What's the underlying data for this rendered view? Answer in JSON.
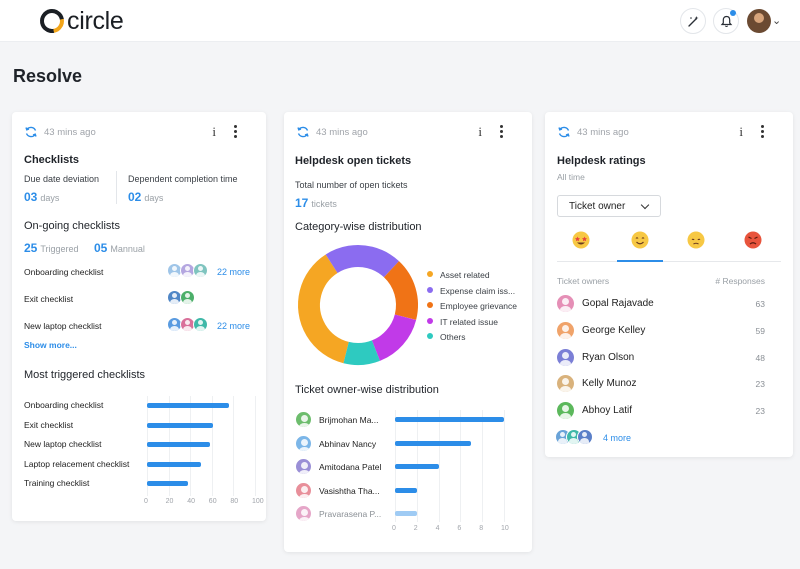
{
  "app": {
    "logo_text": "circle"
  },
  "page": {
    "title": "Resolve"
  },
  "colors": {
    "accent": "#2c8de8",
    "brand_ring": "#f2a51a"
  },
  "icons": {
    "magic": "magic-wand-icon",
    "bell": "bell-icon",
    "refresh": "refresh-icon",
    "info": "info-icon",
    "more": "kebab-menu-icon"
  },
  "checklists_card": {
    "updated": "43 mins ago",
    "info_label": "i",
    "title": "Checklists",
    "due_label": "Due date deviation",
    "due_value": "03",
    "due_unit": "days",
    "dep_label": "Dependent completion time",
    "dep_value": "02",
    "dep_unit": "days",
    "ongoing_title": "On-going checklists",
    "triggered_value": "25",
    "triggered_label": "Triggered",
    "manual_value": "05",
    "manual_label": "Mannual",
    "rows": [
      {
        "label": "Onboarding checklist",
        "more": "22 more"
      },
      {
        "label": "Exit checklist",
        "more": ""
      },
      {
        "label": "New laptop checklist",
        "more": "22 more"
      }
    ],
    "show_more": "Show more...",
    "most_title": "Most triggered checklists"
  },
  "tickets_card": {
    "updated": "43 mins ago",
    "info_label": "i",
    "title": "Helpdesk open tickets",
    "total_label": "Total number of open tickets",
    "total_value": "17",
    "total_unit": "tickets",
    "category_title": "Category-wise distribution",
    "owner_title": "Ticket owner-wise distribution"
  },
  "ratings_card": {
    "updated": "43 mins ago",
    "info_label": "i",
    "title": "Helpdesk ratings",
    "subtitle": "All time",
    "dropdown_value": "Ticket owner",
    "emojis": [
      "star-struck-emoji-icon",
      "smile-emoji-icon",
      "pensive-emoji-icon",
      "angry-emoji-icon"
    ],
    "col_owner": "Ticket owners",
    "col_responses": "# Responses",
    "owners": [
      {
        "name": "Gopal Rajavade",
        "responses": "63",
        "color": "#e58fb6"
      },
      {
        "name": "George Kelley",
        "responses": "59",
        "color": "#f0a36a"
      },
      {
        "name": "Ryan Olson",
        "responses": "48",
        "color": "#7b7fd6"
      },
      {
        "name": "Kelly Munoz",
        "responses": "23",
        "color": "#d9b27c"
      },
      {
        "name": "Abhoy Latif",
        "responses": "23",
        "color": "#5cb85c"
      }
    ],
    "more": "4 more"
  },
  "chart_data": [
    {
      "type": "bar",
      "orientation": "horizontal",
      "title": "Most triggered checklists",
      "categories": [
        "Onboarding checklist",
        "Exit checklist",
        "New laptop checklist",
        "Laptop relacement checklist",
        "Training checklist"
      ],
      "values": [
        76,
        61,
        58,
        50,
        38
      ],
      "xlim": [
        0,
        100
      ],
      "xticks": [
        "0",
        "20",
        "40",
        "60",
        "80",
        "100"
      ],
      "grid": true,
      "color": "#2c8de8"
    },
    {
      "type": "pie",
      "style": "donut",
      "title": "Category-wise distribution",
      "legend_position": "right",
      "slices": [
        {
          "label": "Asset related",
          "value": 37,
          "color": "#f5a623"
        },
        {
          "label": "Expense claim iss...",
          "value": 21,
          "color": "#8b6cf0"
        },
        {
          "label": "Employee grievance",
          "value": 17,
          "color": "#f07316"
        },
        {
          "label": "IT related issue",
          "value": 15,
          "color": "#c13ae8"
        },
        {
          "label": "Others",
          "value": 10,
          "color": "#2ecac0"
        }
      ]
    },
    {
      "type": "bar",
      "orientation": "horizontal",
      "title": "Ticket owner-wise distribution",
      "categories": [
        "Brijmohan Ma...",
        "Abhinav Nancy",
        "Amitodana Patel",
        "Vasishtha Tha...",
        "Pravarasena P..."
      ],
      "values": [
        10,
        7,
        4,
        2,
        2
      ],
      "xlim": [
        0,
        10
      ],
      "xticks": [
        "0",
        "2",
        "4",
        "6",
        "8",
        "10"
      ],
      "grid": true,
      "colors": [
        "#2c8de8",
        "#2c8de8",
        "#2c8de8",
        "#2c8de8",
        "#9fcbf4"
      ],
      "avatar_colors": [
        "#6dbd6d",
        "#7cb6e8",
        "#9a8fd6",
        "#e88f9a",
        "#e5a6c8"
      ]
    }
  ]
}
